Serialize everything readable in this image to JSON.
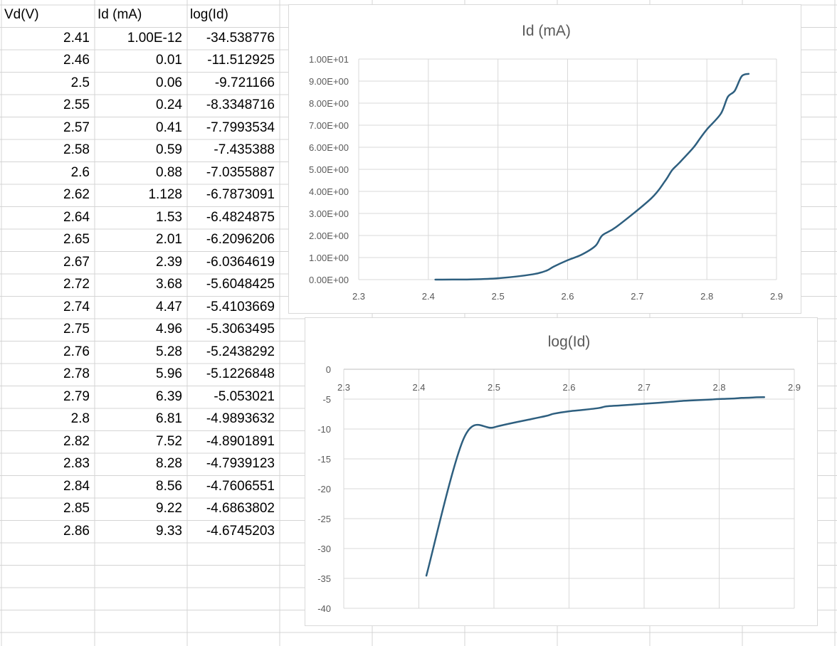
{
  "sheet": {
    "headers": [
      "Vd(V)",
      "Id (mA)",
      "log(Id)"
    ],
    "rows": [
      [
        "2.41",
        "1.00E-12",
        "-34.538776"
      ],
      [
        "2.46",
        "0.01",
        "-11.512925"
      ],
      [
        "2.5",
        "0.06",
        "-9.721166"
      ],
      [
        "2.55",
        "0.24",
        "-8.3348716"
      ],
      [
        "2.57",
        "0.41",
        "-7.7993534"
      ],
      [
        "2.58",
        "0.59",
        "-7.435388"
      ],
      [
        "2.6",
        "0.88",
        "-7.0355887"
      ],
      [
        "2.62",
        "1.128",
        "-6.7873091"
      ],
      [
        "2.64",
        "1.53",
        "-6.4824875"
      ],
      [
        "2.65",
        "2.01",
        "-6.2096206"
      ],
      [
        "2.67",
        "2.39",
        "-6.0364619"
      ],
      [
        "2.72",
        "3.68",
        "-5.6048425"
      ],
      [
        "2.74",
        "4.47",
        "-5.4103669"
      ],
      [
        "2.75",
        "4.96",
        "-5.3063495"
      ],
      [
        "2.76",
        "5.28",
        "-5.2438292"
      ],
      [
        "2.78",
        "5.96",
        "-5.1226848"
      ],
      [
        "2.79",
        "6.39",
        "-5.053021"
      ],
      [
        "2.8",
        "6.81",
        "-4.9893632"
      ],
      [
        "2.82",
        "7.52",
        "-4.8901891"
      ],
      [
        "2.83",
        "8.28",
        "-4.7939123"
      ],
      [
        "2.84",
        "8.56",
        "-4.7606551"
      ],
      [
        "2.85",
        "9.22",
        "-4.6863802"
      ],
      [
        "2.86",
        "9.33",
        "-4.6745203"
      ]
    ]
  },
  "colors": {
    "series": "#2e5f7f",
    "gridline": "#d9d9d9",
    "sheet_grid": "#d4d4d4",
    "axis_text": "#595959"
  },
  "chart_data": [
    {
      "type": "line",
      "title": "Id (mA)",
      "x": [
        2.41,
        2.46,
        2.5,
        2.55,
        2.57,
        2.58,
        2.6,
        2.62,
        2.64,
        2.65,
        2.67,
        2.72,
        2.74,
        2.75,
        2.76,
        2.78,
        2.79,
        2.8,
        2.82,
        2.83,
        2.84,
        2.85,
        2.86
      ],
      "series": [
        {
          "values": [
            1e-12,
            0.01,
            0.06,
            0.24,
            0.41,
            0.59,
            0.88,
            1.128,
            1.53,
            2.01,
            2.39,
            3.68,
            4.47,
            4.96,
            5.28,
            5.96,
            6.39,
            6.81,
            7.52,
            8.28,
            8.56,
            9.22,
            9.33
          ]
        }
      ],
      "xlim": [
        2.3,
        2.9
      ],
      "ylim": [
        0,
        10
      ],
      "x_ticks": [
        "2.3",
        "2.4",
        "2.5",
        "2.6",
        "2.7",
        "2.8",
        "2.9"
      ],
      "y_ticks": [
        "0.00E+00",
        "1.00E+00",
        "2.00E+00",
        "3.00E+00",
        "4.00E+00",
        "5.00E+00",
        "6.00E+00",
        "7.00E+00",
        "8.00E+00",
        "9.00E+00",
        "1.00E+01"
      ],
      "grid": true,
      "legend": "none"
    },
    {
      "type": "line",
      "title": "log(Id)",
      "x": [
        2.41,
        2.46,
        2.5,
        2.55,
        2.57,
        2.58,
        2.6,
        2.62,
        2.64,
        2.65,
        2.67,
        2.72,
        2.74,
        2.75,
        2.76,
        2.78,
        2.79,
        2.8,
        2.82,
        2.83,
        2.84,
        2.85,
        2.86
      ],
      "series": [
        {
          "values": [
            -34.538776,
            -11.512925,
            -9.721166,
            -8.3348716,
            -7.7993534,
            -7.435388,
            -7.0355887,
            -6.7873091,
            -6.4824875,
            -6.2096206,
            -6.0364619,
            -5.6048425,
            -5.4103669,
            -5.3063495,
            -5.2438292,
            -5.1226848,
            -5.053021,
            -4.9893632,
            -4.8901891,
            -4.7939123,
            -4.7606551,
            -4.6863802,
            -4.6745203
          ]
        }
      ],
      "xlim": [
        2.3,
        2.9
      ],
      "ylim": [
        -40,
        0
      ],
      "x_ticks": [
        "2.3",
        "2.4",
        "2.5",
        "2.6",
        "2.7",
        "2.8",
        "2.9"
      ],
      "y_ticks": [
        "0",
        "-5",
        "-10",
        "-15",
        "-20",
        "-25",
        "-30",
        "-35",
        "-40"
      ],
      "x_axis_position": "top",
      "grid": true,
      "legend": "none"
    }
  ]
}
